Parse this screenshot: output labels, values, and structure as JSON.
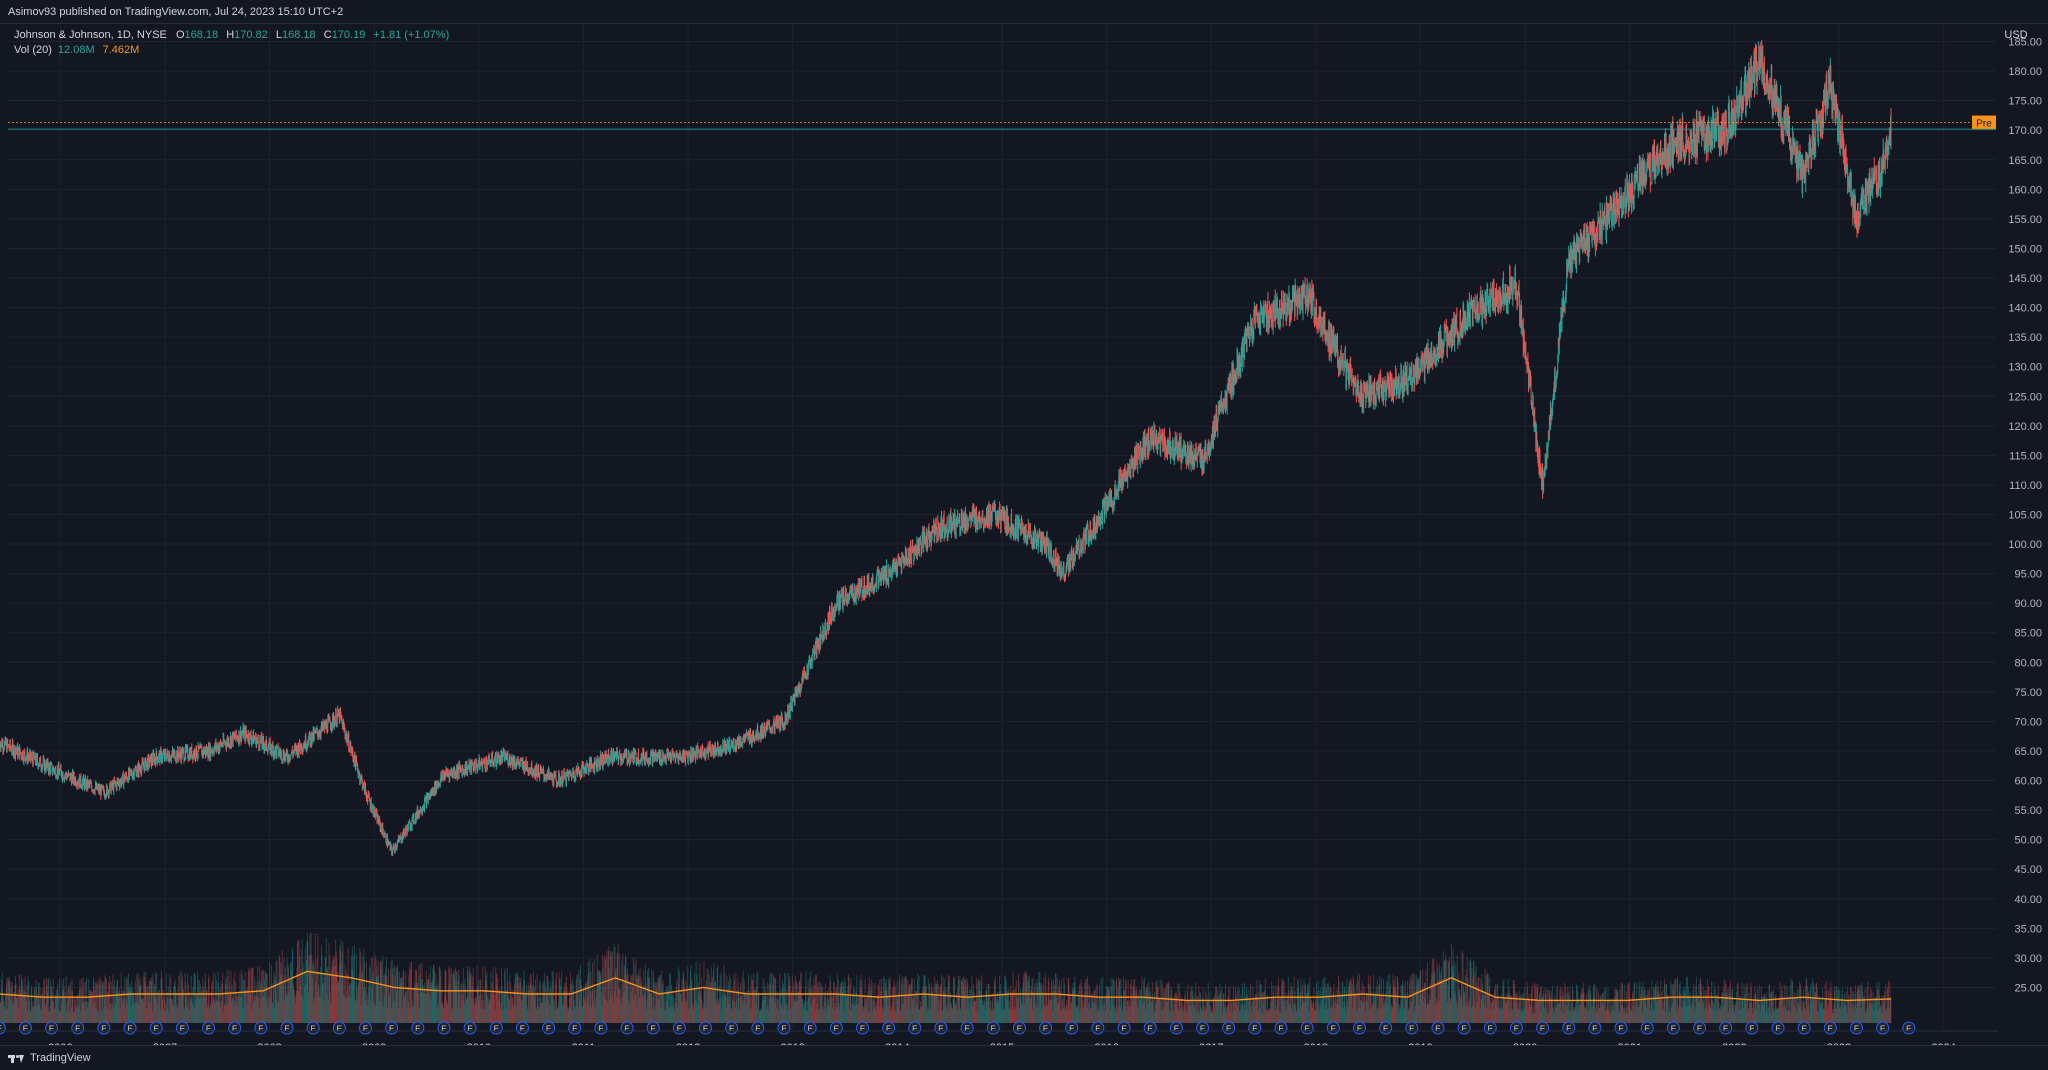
{
  "header": {
    "published_line": "Asimov93 published on TradingView.com, Jul 24, 2023 15:10 UTC+2"
  },
  "legend": {
    "symbol": "Johnson & Johnson, 1D, NYSE",
    "open_label": "O",
    "open": "168.18",
    "high_label": "H",
    "high": "170.82",
    "low_label": "L",
    "low": "168.18",
    "close_label": "C",
    "close": "170.19",
    "change": "+1.81 (+1.07%)",
    "volume_label": "Vol (20)",
    "volume": "12.08M",
    "volume_ma": "7.462M"
  },
  "footer": {
    "brand": "TradingView"
  },
  "colors": {
    "background": "#131722",
    "grid": "#1f2330",
    "up": "#26a69a",
    "down": "#ef5350",
    "volume_ma": "#f7931a",
    "pre_badge": "#f7931a",
    "price_badge": "#26a69a",
    "earnings_marker": "#2962ff"
  },
  "chart_data": {
    "type": "line",
    "title": "",
    "currency": "USD",
    "ylim": [
      20,
      190
    ],
    "y_ticks": [
      "25.00",
      "30.00",
      "35.00",
      "40.00",
      "45.00",
      "50.00",
      "55.00",
      "60.00",
      "65.00",
      "70.00",
      "75.00",
      "80.00",
      "85.00",
      "90.00",
      "95.00",
      "100.00",
      "105.00",
      "110.00",
      "115.00",
      "120.00",
      "125.00",
      "130.00",
      "135.00",
      "140.00",
      "145.00",
      "150.00",
      "155.00",
      "160.00",
      "165.00",
      "170.00",
      "175.00",
      "180.00",
      "185.00",
      "190.00"
    ],
    "x_ticks": [
      "2006",
      "2007",
      "2008",
      "2009",
      "2010",
      "2011",
      "2012",
      "2013",
      "2014",
      "2015",
      "2016",
      "2017",
      "2018",
      "2019",
      "2020",
      "2021",
      "2022",
      "2023",
      "2024"
    ],
    "grid": true,
    "series": [
      {
        "name": "",
        "x": [
          "2005-06",
          "2005-12",
          "2006-06",
          "2006-12",
          "2007-06",
          "2007-10",
          "2008-03",
          "2008-09",
          "2008-12",
          "2009-03",
          "2009-09",
          "2010-04",
          "2010-10",
          "2011-04",
          "2011-08",
          "2011-12",
          "2012-06",
          "2012-12",
          "2013-06",
          "2013-12",
          "2014-06",
          "2014-12",
          "2015-06",
          "2015-08",
          "2015-12",
          "2016-06",
          "2016-12",
          "2017-06",
          "2017-12",
          "2018-06",
          "2018-12",
          "2019-06",
          "2019-12",
          "2020-03",
          "2020-06",
          "2020-12",
          "2021-06",
          "2021-12",
          "2022-04",
          "2022-09",
          "2022-12",
          "2023-03",
          "2023-06",
          "2023-07"
        ],
        "values": [
          66.5,
          62,
          58,
          64,
          65,
          68,
          64,
          71,
          58,
          48,
          61,
          64,
          60,
          64,
          64,
          64,
          66,
          70,
          90,
          95,
          103,
          105,
          100,
          95,
          104,
          118,
          114,
          138,
          142,
          125,
          128,
          138,
          144,
          110,
          148,
          158,
          168,
          170,
          182,
          162,
          178,
          155,
          164,
          170.19
        ]
      }
    ],
    "volume_axis_max_millions": 40,
    "volume_ma_series": {
      "name": "",
      "values_millions": [
        9,
        8,
        8,
        9,
        9,
        9,
        10,
        16,
        14,
        11,
        10,
        10,
        9,
        9,
        14,
        9,
        11,
        9,
        9,
        9,
        8,
        9,
        8,
        9,
        9,
        8,
        8,
        7,
        7,
        8,
        8,
        9,
        8,
        14,
        8,
        7,
        7,
        7,
        8,
        8,
        7,
        8,
        7,
        7.462
      ]
    },
    "price_lines": [
      {
        "label": "Pre",
        "value": "171.30"
      },
      {
        "label": "",
        "value": "170.19"
      }
    ],
    "earnings_marker_symbol": "E"
  }
}
